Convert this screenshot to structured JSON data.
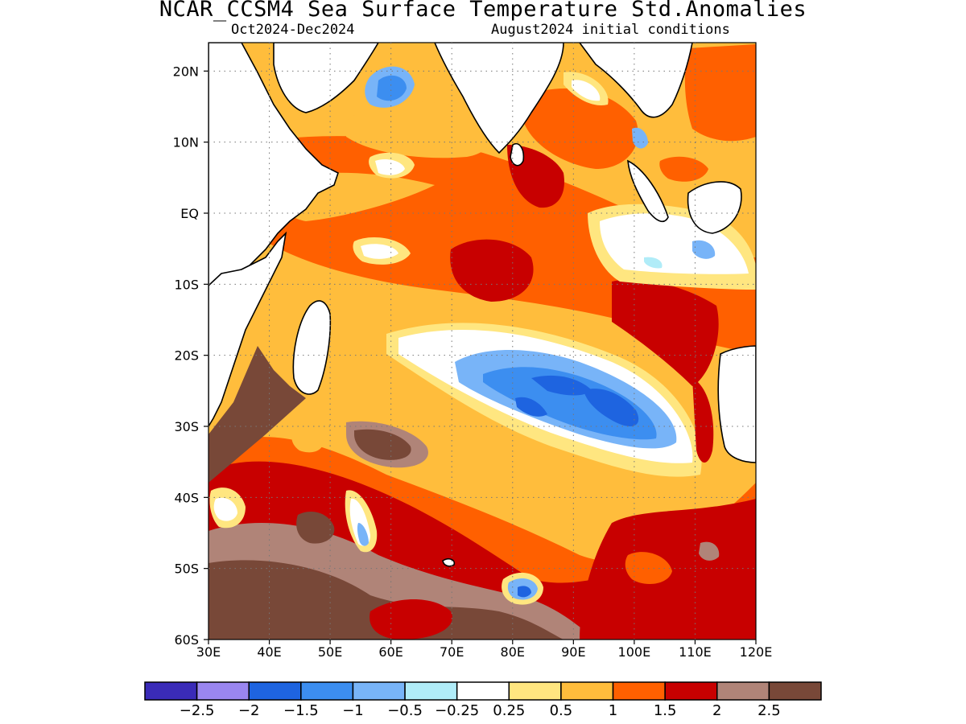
{
  "title": "NCAR_CCSM4 Sea Surface Temperature Std.Anomalies",
  "subtitle_left": "Oct2024-Dec2024",
  "subtitle_right": "August2024 initial conditions",
  "map": {
    "lon_range": [
      30,
      120
    ],
    "lat_range": [
      -60,
      24
    ],
    "lon_ticks": [
      {
        "value": 30,
        "label": "30E"
      },
      {
        "value": 40,
        "label": "40E"
      },
      {
        "value": 50,
        "label": "50E"
      },
      {
        "value": 60,
        "label": "60E"
      },
      {
        "value": 70,
        "label": "70E"
      },
      {
        "value": 80,
        "label": "80E"
      },
      {
        "value": 90,
        "label": "90E"
      },
      {
        "value": 100,
        "label": "100E"
      },
      {
        "value": 110,
        "label": "110E"
      },
      {
        "value": 120,
        "label": "120E"
      }
    ],
    "lat_ticks": [
      {
        "value": 20,
        "label": "20N"
      },
      {
        "value": 10,
        "label": "10N"
      },
      {
        "value": 0,
        "label": "EQ"
      },
      {
        "value": -10,
        "label": "10S"
      },
      {
        "value": -20,
        "label": "20S"
      },
      {
        "value": -30,
        "label": "30S"
      },
      {
        "value": -40,
        "label": "40S"
      },
      {
        "value": -50,
        "label": "50S"
      },
      {
        "value": -60,
        "label": "60S"
      }
    ],
    "grid": "dotted"
  },
  "colorbar": {
    "colors": [
      "#3a2bb8",
      "#9a86f0",
      "#1e64e0",
      "#3c8ef0",
      "#78b4f8",
      "#b0ecf8",
      "#ffffff",
      "#ffe680",
      "#ffbd3c",
      "#ff6000",
      "#c80000",
      "#b08478",
      "#784838"
    ],
    "labels": [
      "−2.5",
      "−2",
      "−1.5",
      "−1",
      "−0.5",
      "−0.25",
      "0.25",
      "0.5",
      "1",
      "1.5",
      "2",
      "2.5"
    ]
  }
}
